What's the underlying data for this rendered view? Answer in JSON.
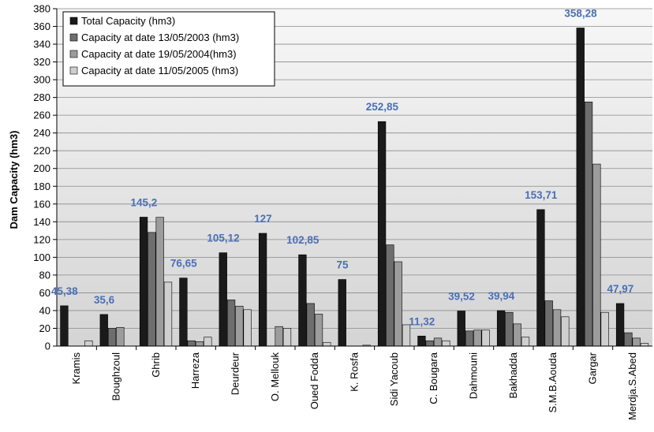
{
  "chart_data": {
    "type": "bar",
    "title": "",
    "xlabel": "",
    "ylabel": "Dam Capacity (hm3)",
    "ylim": [
      0,
      380
    ],
    "ytick_step": 20,
    "grid": true,
    "legend_position": "top-left",
    "categories": [
      "Kramis",
      "Boughzoul",
      "Ghrib",
      "Harreza",
      "Deurdeur",
      "O. Mellouk",
      "Oued Fodda",
      "K. Rosfa",
      "Sidi Yacoub",
      "C. Bougara",
      "Dahmouni",
      "Bakhadda",
      "S.M.B.Aouda",
      "Gargar",
      "Merdja.S.Abed"
    ],
    "series": [
      {
        "name": "Total Capacity (hm3)",
        "color": "#1a1a1a",
        "values": [
          45.38,
          35.6,
          145.2,
          76.65,
          105.12,
          127,
          102.85,
          75,
          252.85,
          11.32,
          39.52,
          39.94,
          153.71,
          358.28,
          47.97
        ]
      },
      {
        "name": "Capacity at date 13/05/2003 (hm3)",
        "color": "#6e6e6e",
        "values": [
          0,
          20,
          128,
          6,
          52,
          0,
          48,
          0,
          114,
          6,
          17,
          38,
          51,
          275,
          15
        ]
      },
      {
        "name": "Capacity at date 19/05/2004(hm3)",
        "color": "#9c9c9c",
        "values": [
          0,
          21,
          145,
          5,
          45,
          22,
          36,
          0,
          95,
          9,
          18,
          25,
          41,
          205,
          9
        ]
      },
      {
        "name": "Capacity at date 11/05/2005 (hm3)",
        "color": "#cfcfcf",
        "values": [
          6,
          0,
          72,
          10,
          41,
          20,
          4,
          1,
          24,
          6,
          18,
          10,
          33,
          38,
          3
        ]
      }
    ],
    "data_labels": [
      "45,38",
      "35,6",
      "145,2",
      "76,65",
      "105,12",
      "127",
      "102,85",
      "75",
      "252,85",
      "11,32",
      "39,52",
      "39,94",
      "153,71",
      "358,28",
      "47,97"
    ],
    "colors": {
      "plot_bg_top": "#f7f7f7",
      "plot_bg_bottom": "#d4d4d4",
      "data_label": "#4a6fb5"
    }
  }
}
